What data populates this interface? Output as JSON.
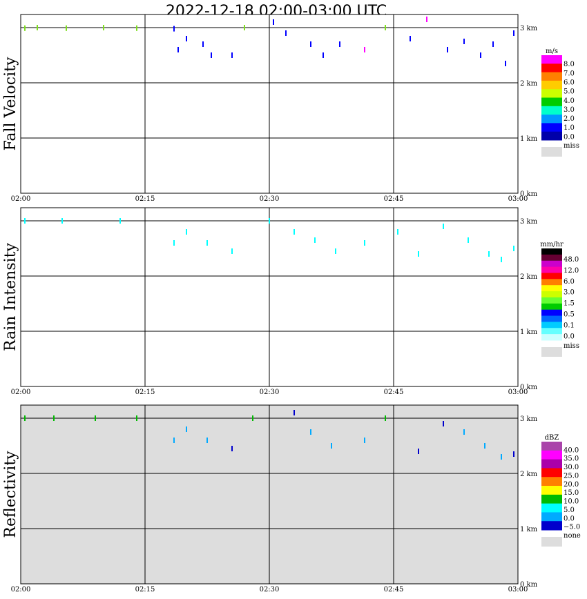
{
  "chart_data": {
    "type": "heatmap",
    "title": "2022-12-18   02:00-03:00 UTC",
    "x_ticks": [
      "02:00",
      "02:15",
      "02:30",
      "02:45",
      "03:00"
    ],
    "y_ticks": [
      "0 km",
      "1 km",
      "2 km",
      "3 km"
    ],
    "ylim_km": [
      0,
      3.2
    ],
    "xlim_min": [
      0,
      60
    ],
    "panels": [
      {
        "title": "Fall Velocity",
        "background": "#ffffff",
        "legend_unit": "m/s",
        "legend_labels": [
          "8.0",
          "7.0",
          "6.0",
          "5.0",
          "4.0",
          "3.0",
          "2.0",
          "1.0",
          "0.0"
        ],
        "legend_colors": [
          "#ff00ff",
          "#ff0000",
          "#ff8000",
          "#ffcc00",
          "#ccff00",
          "#00cc00",
          "#00ffcc",
          "#0099ff",
          "#0000ff",
          "#0000aa"
        ],
        "missing_label": "miss",
        "sample_points": [
          [
            0.5,
            2.99,
            "#80e020"
          ],
          [
            2.0,
            3.0,
            "#80e020"
          ],
          [
            5.5,
            2.99,
            "#80e020"
          ],
          [
            10.0,
            3.0,
            "#80e020"
          ],
          [
            14.0,
            2.99,
            "#80e020"
          ],
          [
            18.5,
            2.98,
            "#0000ff"
          ],
          [
            19.0,
            2.6,
            "#0000ff"
          ],
          [
            20.0,
            2.8,
            "#0000ff"
          ],
          [
            22.0,
            2.7,
            "#0000ff"
          ],
          [
            23.0,
            2.5,
            "#0000ff"
          ],
          [
            25.5,
            2.5,
            "#0000ff"
          ],
          [
            27.0,
            3.0,
            "#80e020"
          ],
          [
            30.5,
            3.1,
            "#0000ff"
          ],
          [
            32.0,
            2.9,
            "#0000ff"
          ],
          [
            35.0,
            2.7,
            "#0000ff"
          ],
          [
            36.5,
            2.5,
            "#0000ff"
          ],
          [
            38.5,
            2.7,
            "#0000ff"
          ],
          [
            41.5,
            2.6,
            "#ff00ff"
          ],
          [
            44.0,
            3.0,
            "#80e020"
          ],
          [
            47.0,
            2.8,
            "#0000ff"
          ],
          [
            49.0,
            3.15,
            "#ff00ff"
          ],
          [
            51.5,
            2.6,
            "#0000ff"
          ],
          [
            53.5,
            2.75,
            "#0000ff"
          ],
          [
            55.5,
            2.5,
            "#0000ff"
          ],
          [
            57.0,
            2.7,
            "#0000ff"
          ],
          [
            58.5,
            2.35,
            "#0000ff"
          ],
          [
            59.5,
            2.9,
            "#0000ff"
          ]
        ]
      },
      {
        "title": "Rain Intensity",
        "background": "#ffffff",
        "legend_unit": "mm/hr",
        "legend_labels": [
          "48.0",
          "12.0",
          "6.0",
          "3.0",
          "1.5",
          "0.5",
          "0.1",
          "0.0"
        ],
        "legend_colors": [
          "#000000",
          "#660033",
          "#cc00cc",
          "#ff00aa",
          "#ff0000",
          "#ff8000",
          "#ffff00",
          "#ccff00",
          "#66ff33",
          "#00cc00",
          "#0000ff",
          "#0066ff",
          "#00ccff",
          "#66ffff",
          "#ccffff"
        ],
        "missing_label": "miss",
        "sample_points": [
          [
            0.5,
            3.0,
            "#00ffff"
          ],
          [
            5.0,
            3.0,
            "#00ffff"
          ],
          [
            12.0,
            3.0,
            "#00ffff"
          ],
          [
            18.5,
            2.6,
            "#00ffff"
          ],
          [
            20.0,
            2.8,
            "#00ffff"
          ],
          [
            22.5,
            2.6,
            "#00ffff"
          ],
          [
            25.5,
            2.45,
            "#00ffff"
          ],
          [
            30.0,
            3.0,
            "#00ffff"
          ],
          [
            33.0,
            2.8,
            "#00ffff"
          ],
          [
            35.5,
            2.65,
            "#00ffff"
          ],
          [
            38.0,
            2.45,
            "#00ffff"
          ],
          [
            41.5,
            2.6,
            "#00ffff"
          ],
          [
            45.5,
            2.8,
            "#00ffff"
          ],
          [
            48.0,
            2.4,
            "#00ffff"
          ],
          [
            51.0,
            2.9,
            "#00ffff"
          ],
          [
            54.0,
            2.65,
            "#00ffff"
          ],
          [
            56.5,
            2.4,
            "#00ffff"
          ],
          [
            58.0,
            2.3,
            "#00ffff"
          ],
          [
            59.5,
            2.5,
            "#00ffff"
          ]
        ]
      },
      {
        "title": "Reflectivity",
        "background": "#dddddd",
        "legend_unit": "dBZ",
        "legend_labels": [
          "40.0",
          "35.0",
          "30.0",
          "25.0",
          "20.0",
          "15.0",
          "10.0",
          "5.0",
          "0.0",
          "−5.0"
        ],
        "legend_colors": [
          "#aa44aa",
          "#ff00ff",
          "#aa00aa",
          "#ff0000",
          "#ff8000",
          "#ffff00",
          "#00bb00",
          "#00ffff",
          "#00aaff",
          "#0000cc"
        ],
        "missing_label": "none",
        "sample_points": [
          [
            0.5,
            3.0,
            "#00bb00"
          ],
          [
            4.0,
            3.0,
            "#00bb00"
          ],
          [
            9.0,
            3.0,
            "#00bb00"
          ],
          [
            14.0,
            3.0,
            "#00bb00"
          ],
          [
            18.5,
            2.6,
            "#00aaff"
          ],
          [
            20.0,
            2.8,
            "#00aaff"
          ],
          [
            22.5,
            2.6,
            "#00aaff"
          ],
          [
            25.5,
            2.45,
            "#0000cc"
          ],
          [
            28.0,
            3.0,
            "#00bb00"
          ],
          [
            33.0,
            3.1,
            "#0000cc"
          ],
          [
            35.0,
            2.75,
            "#00aaff"
          ],
          [
            37.5,
            2.5,
            "#00aaff"
          ],
          [
            41.5,
            2.6,
            "#00aaff"
          ],
          [
            44.0,
            3.0,
            "#00bb00"
          ],
          [
            48.0,
            2.4,
            "#0000cc"
          ],
          [
            51.0,
            2.9,
            "#0000cc"
          ],
          [
            53.5,
            2.75,
            "#00aaff"
          ],
          [
            56.0,
            2.5,
            "#00aaff"
          ],
          [
            58.0,
            2.3,
            "#00aaff"
          ],
          [
            59.5,
            2.35,
            "#0000cc"
          ]
        ]
      }
    ]
  }
}
